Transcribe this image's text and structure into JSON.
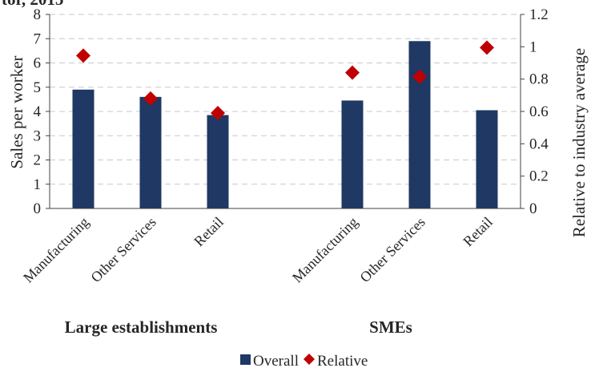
{
  "chart_data": {
    "type": "bar",
    "title": "tor, 2015",
    "ylabel": "Sales per worker",
    "y2label": "Relative to industry average",
    "ylim": [
      0,
      8
    ],
    "yticks": [
      0,
      1,
      2,
      3,
      4,
      5,
      6,
      7,
      8
    ],
    "y2lim": [
      0,
      1.2
    ],
    "y2ticks": [
      "0",
      "0.2",
      "0.4",
      "0.6",
      "0.8",
      "1",
      "1.2"
    ],
    "grid": true,
    "legend_position": "bottom",
    "groups": [
      {
        "label": "Large establishments",
        "categories": [
          "Manufacturing",
          "Other Services",
          "Retail"
        ]
      },
      {
        "label": "SMEs",
        "categories": [
          "Manufacturing",
          "Other Services",
          "Retail"
        ]
      }
    ],
    "series": [
      {
        "name": "Overall",
        "type": "bar",
        "axis": "left",
        "color": "#1f3864",
        "values": [
          4.9,
          4.6,
          3.85,
          4.45,
          6.9,
          4.05
        ]
      },
      {
        "name": "Relative",
        "type": "marker",
        "marker": "diamond",
        "axis": "right",
        "color": "#c00000",
        "values": [
          0.945,
          0.68,
          0.59,
          0.84,
          0.815,
          0.995
        ]
      }
    ]
  }
}
